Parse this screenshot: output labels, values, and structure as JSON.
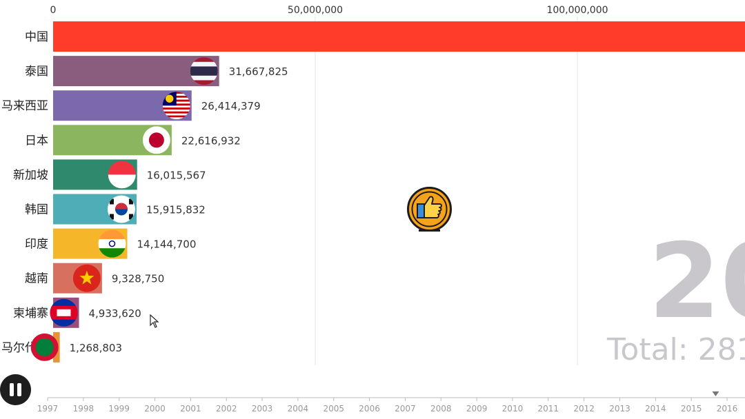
{
  "chart_data": {
    "type": "bar",
    "orientation": "horizontal",
    "title": "",
    "xlim": [
      0,
      140000000
    ],
    "x_ticks": [
      {
        "value": 0,
        "label": "0"
      },
      {
        "value": 50000000,
        "label": "50,000,000"
      },
      {
        "value": 100000000,
        "label": "100,000,000"
      }
    ],
    "grid": true,
    "categories": [
      "中国",
      "泰国",
      "马来西亚",
      "日本",
      "新加坡",
      "韩国",
      "印度",
      "越南",
      "柬埔寨",
      "马尔代夫"
    ],
    "values": [
      140000000,
      31667825,
      26414379,
      22616932,
      16015567,
      15915832,
      14144700,
      9328750,
      4933620,
      1268803
    ],
    "value_labels": [
      "",
      "31,667,825",
      "26,414,379",
      "22,616,932",
      "16,015,567",
      "15,915,832",
      "14,144,700",
      "9,328,750",
      "4,933,620",
      "1,268,803"
    ],
    "colors": [
      "#ff3b2a",
      "#8a5d7f",
      "#7b68ad",
      "#8cb560",
      "#2f8a6d",
      "#4fadb7",
      "#f5b62a",
      "#d87060",
      "#9a4d7a",
      "#e8923a"
    ],
    "flags": [
      "",
      "thailand-flag",
      "malaysia-flag",
      "japan-flag",
      "singapore-flag",
      "south-korea-flag",
      "india-flag",
      "vietnam-flag",
      "cambodia-flag",
      "maldives-flag"
    ],
    "year_label": "20",
    "total_label": "Total: 281",
    "timeline": {
      "years": [
        "1997",
        "1998",
        "1999",
        "2000",
        "2001",
        "2002",
        "2003",
        "2004",
        "2005",
        "2006",
        "2007",
        "2008",
        "2009",
        "2010",
        "2011",
        "2012",
        "2013",
        "2014",
        "2015",
        "2016"
      ],
      "current": "2015"
    }
  },
  "controls": {
    "pause_icon": "pause-icon"
  },
  "overlay": {
    "badge_icon": "thumbs-up-icon",
    "cursor_icon": "mouse-cursor-icon"
  }
}
